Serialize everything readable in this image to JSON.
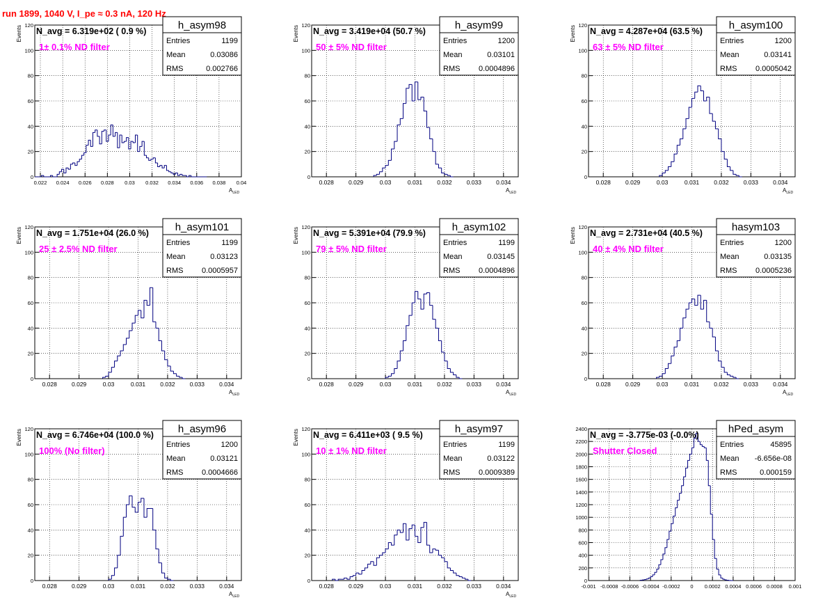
{
  "run_title": "run 1899,  1040 V, I_pe ≈ 0.3 nA, 120 Hz",
  "chart_data": [
    {
      "type": "histogram",
      "stats_name": "h_asym98",
      "n_avg": "N_avg = 6.319e+02 ( 0.9 %)",
      "filter_label": "1± 0.1% ND filter",
      "stats": {
        "entries_label": "Entries",
        "entries": "1199",
        "mean_label": "Mean",
        "mean": "0.03086",
        "rms_label": "RMS",
        "rms": "0.002766"
      },
      "xlabel": "A_LED",
      "ylabel": "Events",
      "xlim": [
        0.0215,
        0.04
      ],
      "ylim": [
        0,
        120
      ],
      "x_ticks": [
        0.022,
        0.024,
        0.026,
        0.028,
        0.03,
        0.032,
        0.034,
        0.036,
        0.038,
        0.04
      ],
      "x_tick_labels": [
        "0.022",
        "0.024",
        "0.026",
        "0.028",
        "0.03",
        "0.032",
        "0.034",
        "0.036",
        "0.038",
        "0.04"
      ],
      "y_ticks": [
        0,
        20,
        40,
        60,
        80,
        100,
        120
      ],
      "y_tick_labels": [
        "0",
        "20",
        "40",
        "60",
        "80",
        "100",
        "120"
      ],
      "bin_start": 0.0215,
      "bin_width": 0.0002,
      "values": [
        0,
        0,
        0,
        1,
        0,
        0,
        0,
        1,
        0,
        0,
        2,
        4,
        6,
        3,
        7,
        6,
        10,
        11,
        9,
        12,
        14,
        17,
        19,
        25,
        29,
        24,
        35,
        37,
        32,
        26,
        36,
        37,
        28,
        33,
        41,
        32,
        35,
        23,
        33,
        27,
        28,
        31,
        22,
        28,
        27,
        33,
        20,
        24,
        28,
        17,
        15,
        13,
        14,
        15,
        11,
        8,
        9,
        7,
        9,
        5,
        4,
        3,
        2,
        3,
        1,
        2,
        1,
        1,
        0,
        1,
        0,
        0,
        0,
        0,
        0,
        0,
        0
      ]
    },
    {
      "type": "histogram",
      "stats_name": "h_asym99",
      "n_avg": "N_avg = 3.419e+04 (50.7 %)",
      "filter_label": "50 ± 5% ND filter",
      "stats": {
        "entries_label": "Entries",
        "entries": "1200",
        "mean_label": "Mean",
        "mean": "0.03101",
        "rms_label": "RMS",
        "rms": "0.0004896"
      },
      "xlabel": "A_LED",
      "ylabel": "Events",
      "xlim": [
        0.0275,
        0.0345
      ],
      "ylim": [
        0,
        120
      ],
      "x_ticks": [
        0.028,
        0.029,
        0.03,
        0.031,
        0.032,
        0.033,
        0.034
      ],
      "x_tick_labels": [
        "0.028",
        "0.029",
        "0.03",
        "0.031",
        "0.032",
        "0.033",
        "0.034"
      ],
      "y_ticks": [
        0,
        20,
        40,
        60,
        80,
        100,
        120
      ],
      "y_tick_labels": [
        "0",
        "20",
        "40",
        "60",
        "80",
        "100",
        "120"
      ],
      "bin_start": 0.0296,
      "bin_width": 0.0001,
      "values": [
        1,
        2,
        4,
        7,
        9,
        13,
        22,
        28,
        41,
        46,
        58,
        70,
        73,
        60,
        75,
        61,
        63,
        52,
        39,
        30,
        20,
        10,
        7,
        3,
        2,
        1,
        0
      ]
    },
    {
      "type": "histogram",
      "stats_name": "h_asym100",
      "n_avg": "N_avg = 4.287e+04 (63.5 %)",
      "filter_label": "63 ± 5% ND filter",
      "stats": {
        "entries_label": "Entries",
        "entries": "1200",
        "mean_label": "Mean",
        "mean": "0.03141",
        "rms_label": "RMS",
        "rms": "0.0005042"
      },
      "xlabel": "A_LED",
      "ylabel": "Events",
      "xlim": [
        0.0275,
        0.0345
      ],
      "ylim": [
        0,
        120
      ],
      "x_ticks": [
        0.028,
        0.029,
        0.03,
        0.031,
        0.032,
        0.033,
        0.034
      ],
      "x_tick_labels": [
        "0.028",
        "0.029",
        "0.03",
        "0.031",
        "0.032",
        "0.033",
        "0.034"
      ],
      "y_ticks": [
        0,
        20,
        40,
        60,
        80,
        100,
        120
      ],
      "y_tick_labels": [
        "0",
        "20",
        "40",
        "60",
        "80",
        "100",
        "120"
      ],
      "bin_start": 0.0299,
      "bin_width": 0.0001,
      "values": [
        1,
        3,
        5,
        8,
        12,
        18,
        25,
        30,
        38,
        46,
        55,
        62,
        67,
        72,
        68,
        60,
        63,
        50,
        44,
        38,
        30,
        20,
        14,
        8,
        5,
        2,
        1,
        0
      ]
    },
    {
      "type": "histogram",
      "stats_name": "h_asym101",
      "n_avg": "N_avg = 1.751e+04 (26.0 %)",
      "filter_label": "25 ± 2.5% ND filter",
      "stats": {
        "entries_label": "Entries",
        "entries": "1199",
        "mean_label": "Mean",
        "mean": "0.03123",
        "rms_label": "RMS",
        "rms": "0.0005957"
      },
      "xlabel": "A_LED",
      "ylabel": "Events",
      "xlim": [
        0.0275,
        0.0345
      ],
      "ylim": [
        0,
        120
      ],
      "x_ticks": [
        0.028,
        0.029,
        0.03,
        0.031,
        0.032,
        0.033,
        0.034
      ],
      "x_tick_labels": [
        "0.028",
        "0.029",
        "0.03",
        "0.031",
        "0.032",
        "0.033",
        "0.034"
      ],
      "y_ticks": [
        0,
        20,
        40,
        60,
        80,
        100,
        120
      ],
      "y_tick_labels": [
        "0",
        "20",
        "40",
        "60",
        "80",
        "100",
        "120"
      ],
      "bin_start": 0.0298,
      "bin_width": 0.0001,
      "values": [
        1,
        2,
        5,
        9,
        14,
        18,
        22,
        27,
        32,
        38,
        44,
        50,
        54,
        48,
        62,
        58,
        72,
        45,
        40,
        30,
        22,
        15,
        10,
        6,
        4,
        2,
        1,
        0
      ]
    },
    {
      "type": "histogram",
      "stats_name": "h_asym102",
      "n_avg": "N_avg = 5.391e+04 (79.9 %)",
      "filter_label": "79 ± 5% ND filter",
      "stats": {
        "entries_label": "Entries",
        "entries": "1199",
        "mean_label": "Mean",
        "mean": "0.03145",
        "rms_label": "RMS",
        "rms": "0.0004896"
      },
      "xlabel": "A_LED",
      "ylabel": "Events",
      "xlim": [
        0.0275,
        0.0345
      ],
      "ylim": [
        0,
        120
      ],
      "x_ticks": [
        0.028,
        0.029,
        0.03,
        0.031,
        0.032,
        0.033,
        0.034
      ],
      "x_tick_labels": [
        "0.028",
        "0.029",
        "0.03",
        "0.031",
        "0.032",
        "0.033",
        "0.034"
      ],
      "y_ticks": [
        0,
        20,
        40,
        60,
        80,
        100,
        120
      ],
      "y_tick_labels": [
        "0",
        "20",
        "40",
        "60",
        "80",
        "100",
        "120"
      ],
      "bin_start": 0.03,
      "bin_width": 0.0001,
      "values": [
        1,
        2,
        4,
        8,
        14,
        22,
        30,
        42,
        50,
        60,
        69,
        63,
        55,
        67,
        68,
        58,
        47,
        40,
        30,
        21,
        14,
        8,
        5,
        3,
        1,
        0
      ]
    },
    {
      "type": "histogram",
      "stats_name": "hasym103",
      "n_avg": "N_avg = 2.731e+04 (40.5 %)",
      "filter_label": "40 ± 4% ND filter",
      "stats": {
        "entries_label": "Entries",
        "entries": "1200",
        "mean_label": "Mean",
        "mean": "0.03135",
        "rms_label": "RMS",
        "rms": "0.0005236"
      },
      "xlabel": "A_LED",
      "ylabel": "Events",
      "xlim": [
        0.0275,
        0.0345
      ],
      "ylim": [
        0,
        120
      ],
      "x_ticks": [
        0.028,
        0.029,
        0.03,
        0.031,
        0.032,
        0.033,
        0.034
      ],
      "x_tick_labels": [
        "0.028",
        "0.029",
        "0.03",
        "0.031",
        "0.032",
        "0.033",
        "0.034"
      ],
      "y_ticks": [
        0,
        20,
        40,
        60,
        80,
        100,
        120
      ],
      "y_tick_labels": [
        "0",
        "20",
        "40",
        "60",
        "80",
        "100",
        "120"
      ],
      "bin_start": 0.0298,
      "bin_width": 0.0001,
      "values": [
        1,
        2,
        4,
        8,
        12,
        18,
        25,
        30,
        40,
        48,
        55,
        60,
        63,
        58,
        66,
        55,
        62,
        45,
        40,
        33,
        22,
        14,
        9,
        5,
        3,
        2,
        1,
        0
      ]
    },
    {
      "type": "histogram",
      "stats_name": "h_asym96",
      "n_avg": "N_avg = 6.746e+04 (100.0 %)",
      "filter_label": "100% (No filter)",
      "stats": {
        "entries_label": "Entries",
        "entries": "1200",
        "mean_label": "Mean",
        "mean": "0.03121",
        "rms_label": "RMS",
        "rms": "0.0004666"
      },
      "xlabel": "A_LED",
      "ylabel": "Events",
      "xlim": [
        0.0275,
        0.0345
      ],
      "ylim": [
        0,
        120
      ],
      "x_ticks": [
        0.028,
        0.029,
        0.03,
        0.031,
        0.032,
        0.033,
        0.034
      ],
      "x_tick_labels": [
        "0.028",
        "0.029",
        "0.03",
        "0.031",
        "0.032",
        "0.033",
        "0.034"
      ],
      "y_ticks": [
        0,
        20,
        40,
        60,
        80,
        100,
        120
      ],
      "y_tick_labels": [
        "0",
        "20",
        "40",
        "60",
        "80",
        "100",
        "120"
      ],
      "bin_start": 0.03,
      "bin_width": 0.0001,
      "values": [
        1,
        4,
        10,
        20,
        35,
        50,
        60,
        67,
        58,
        54,
        62,
        65,
        50,
        57,
        57,
        40,
        25,
        14,
        6,
        2,
        1,
        0
      ]
    },
    {
      "type": "histogram",
      "stats_name": "h_asym97",
      "n_avg": "N_avg = 6.411e+03 ( 9.5 %)",
      "filter_label": "10 ± 1% ND filter",
      "stats": {
        "entries_label": "Entries",
        "entries": "1199",
        "mean_label": "Mean",
        "mean": "0.03122",
        "rms_label": "RMS",
        "rms": "0.0009389"
      },
      "xlabel": "A_LED",
      "ylabel": "Events",
      "xlim": [
        0.0275,
        0.0345
      ],
      "ylim": [
        0,
        120
      ],
      "x_ticks": [
        0.028,
        0.029,
        0.03,
        0.031,
        0.032,
        0.033,
        0.034
      ],
      "x_tick_labels": [
        "0.028",
        "0.029",
        "0.03",
        "0.031",
        "0.032",
        "0.033",
        "0.034"
      ],
      "y_ticks": [
        0,
        20,
        40,
        60,
        80,
        100,
        120
      ],
      "y_tick_labels": [
        "0",
        "20",
        "40",
        "60",
        "80",
        "100",
        "120"
      ],
      "bin_start": 0.0282,
      "bin_width": 0.0001,
      "values": [
        1,
        0,
        1,
        1,
        2,
        1,
        3,
        4,
        6,
        5,
        8,
        10,
        13,
        15,
        12,
        18,
        20,
        22,
        25,
        30,
        28,
        36,
        40,
        38,
        45,
        32,
        41,
        44,
        35,
        30,
        42,
        46,
        28,
        22,
        25,
        24,
        20,
        18,
        15,
        10,
        8,
        6,
        4,
        3,
        2,
        1,
        0
      ]
    },
    {
      "type": "histogram",
      "stats_name": "hPed_asym",
      "n_avg": "N_avg = -3.775e-03 (-0.0%)",
      "filter_label": "Shutter Closed",
      "stats": {
        "entries_label": "Entries",
        "entries": "45895",
        "mean_label": "Mean",
        "mean": "-6.656e-08",
        "rms_label": "RMS",
        "rms": "0.000159"
      },
      "xlabel": "",
      "ylabel": "",
      "xlim": [
        -0.001,
        0.001
      ],
      "ylim": [
        0,
        2400
      ],
      "x_ticks": [
        -0.001,
        -0.0008,
        -0.0006,
        -0.0004,
        -0.0002,
        0,
        0.0002,
        0.0004,
        0.0006,
        0.0008,
        0.001
      ],
      "x_tick_labels": [
        "-0.001",
        "-0.0008",
        "-0.0006",
        "-0.0004",
        "-0.0002",
        "0",
        "0.0002",
        "0.0004",
        "0.0006",
        "0.0008",
        "0.001"
      ],
      "y_ticks": [
        0,
        200,
        400,
        600,
        800,
        1000,
        1200,
        1400,
        1600,
        1800,
        2000,
        2200,
        2400
      ],
      "y_tick_labels": [
        "0",
        "200",
        "400",
        "600",
        "800",
        "1000",
        "1200",
        "1400",
        "1600",
        "1800",
        "2000",
        "2200",
        "2400"
      ],
      "bin_start": -0.0005,
      "bin_width": 2e-05,
      "values": [
        5,
        10,
        15,
        25,
        40,
        60,
        90,
        130,
        180,
        250,
        330,
        420,
        520,
        650,
        780,
        900,
        1020,
        1150,
        1270,
        1380,
        1500,
        1640,
        1780,
        1900,
        2000,
        2100,
        2250,
        2330,
        2200,
        2150,
        2120,
        2100,
        1900,
        1500,
        1050,
        650,
        350,
        180,
        90,
        40,
        20,
        10,
        5,
        2,
        0
      ]
    }
  ]
}
